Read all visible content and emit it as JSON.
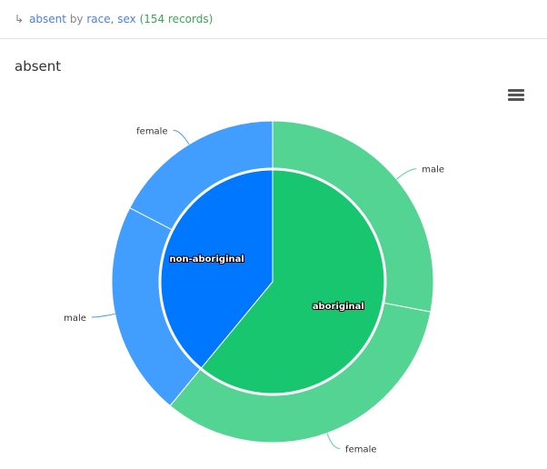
{
  "header": {
    "arrow_icon": "return-arrow-icon",
    "measure": "absent",
    "by": "by",
    "dims": "race, sex",
    "records": "(154 records)"
  },
  "chart_data": {
    "type": "pie",
    "subtype": "sunburst",
    "title": "absent",
    "inner": [
      {
        "name": "aboriginal",
        "value": 61.0,
        "color": "#18c66f"
      },
      {
        "name": "non-aboriginal",
        "value": 39.0,
        "color": "#0077ff"
      }
    ],
    "outer": [
      {
        "parent": "aboriginal",
        "name": "male",
        "value": 28.0,
        "color": "#53d493"
      },
      {
        "parent": "aboriginal",
        "name": "female",
        "value": 33.0,
        "color": "#53d493"
      },
      {
        "parent": "non-aboriginal",
        "name": "male",
        "value": 21.6,
        "color": "#419eff"
      },
      {
        "parent": "non-aboriginal",
        "name": "female",
        "value": 17.4,
        "color": "#419eff"
      }
    ]
  },
  "menu": {
    "icon": "hamburger-menu-icon"
  }
}
